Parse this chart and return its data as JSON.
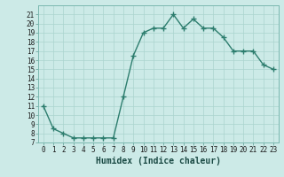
{
  "x": [
    0,
    1,
    2,
    3,
    4,
    5,
    6,
    7,
    8,
    9,
    10,
    11,
    12,
    13,
    14,
    15,
    16,
    17,
    18,
    19,
    20,
    21,
    22,
    23
  ],
  "y": [
    11,
    8.5,
    8.0,
    7.5,
    7.5,
    7.5,
    7.5,
    7.5,
    12.0,
    16.5,
    19.0,
    19.5,
    19.5,
    21.0,
    19.5,
    20.5,
    19.5,
    19.5,
    18.5,
    17.0,
    17.0,
    17.0,
    15.5,
    15.0
  ],
  "line_color": "#2d7d6e",
  "marker": "+",
  "marker_size": 4,
  "background_color": "#cceae7",
  "grid_color": "#aad4ce",
  "xlabel": "Humidex (Indice chaleur)",
  "xlim": [
    -0.5,
    23.5
  ],
  "ylim": [
    7,
    22
  ],
  "yticks": [
    7,
    8,
    9,
    10,
    11,
    12,
    13,
    14,
    15,
    16,
    17,
    18,
    19,
    20,
    21
  ],
  "xticks": [
    0,
    1,
    2,
    3,
    4,
    5,
    6,
    7,
    8,
    9,
    10,
    11,
    12,
    13,
    14,
    15,
    16,
    17,
    18,
    19,
    20,
    21,
    22,
    23
  ],
  "tick_fontsize": 5.5,
  "xlabel_fontsize": 7,
  "linewidth": 1.0,
  "spine_color": "#7ab8b0"
}
